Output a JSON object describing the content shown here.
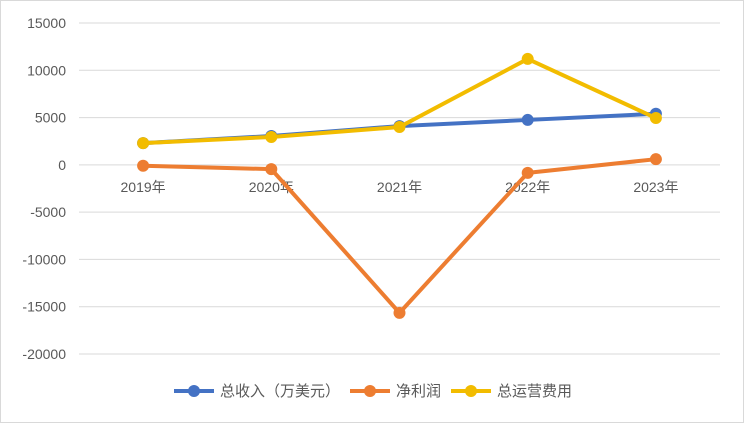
{
  "chart_data": {
    "type": "line",
    "title": "",
    "xlabel": "",
    "ylabel": "",
    "categories": [
      "2019年",
      "2020年",
      "2021年",
      "2022年",
      "2023年"
    ],
    "series": [
      {
        "name": "总收入（万美元）",
        "color": "#4472c4",
        "values": [
          2300,
          3050,
          4100,
          4750,
          5400
        ]
      },
      {
        "name": "净利润",
        "color": "#ed7d31",
        "values": [
          -100,
          -450,
          -15650,
          -850,
          600
        ]
      },
      {
        "name": "总运营费用",
        "color": "#f2bc00",
        "values": [
          2300,
          2950,
          4000,
          11200,
          4950
        ]
      }
    ],
    "y_ticks": [
      15000,
      10000,
      5000,
      0,
      -5000,
      -10000,
      -15000,
      -20000
    ],
    "ylim": [
      -20000,
      15000
    ],
    "grid": true,
    "legend_position": "bottom"
  }
}
